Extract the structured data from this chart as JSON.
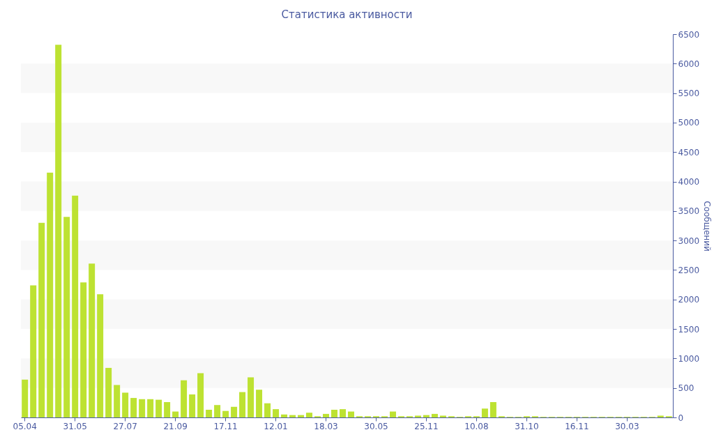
{
  "chart_data": {
    "type": "bar",
    "title": "Статистика активности",
    "y2label": "Сообщений",
    "categories": [
      "05.04",
      null,
      null,
      null,
      null,
      null,
      "31.05",
      null,
      null,
      null,
      null,
      null,
      "27.07",
      null,
      null,
      null,
      null,
      null,
      "21.09",
      null,
      null,
      null,
      null,
      null,
      "17.11",
      null,
      null,
      null,
      null,
      null,
      "12.01",
      null,
      null,
      null,
      null,
      null,
      "18.03",
      null,
      null,
      null,
      null,
      null,
      "30.05",
      null,
      null,
      null,
      null,
      null,
      "25.11",
      null,
      null,
      null,
      null,
      null,
      "10.08",
      null,
      null,
      null,
      null,
      null,
      "31.10",
      null,
      null,
      null,
      null,
      null,
      "16.11",
      null,
      null,
      null,
      null,
      null,
      "30.03",
      null,
      null,
      null,
      null,
      null
    ],
    "series": [
      {
        "color": "#bde232",
        "axis": "y2",
        "values": [
          640,
          2240,
          3300,
          4150,
          6320,
          3400,
          3760,
          2290,
          2610,
          2090,
          840,
          550,
          420,
          330,
          310,
          310,
          300,
          260,
          100,
          630,
          390,
          750,
          130,
          210,
          110,
          180,
          430,
          680,
          470,
          240,
          140,
          50,
          40,
          40,
          80,
          20,
          60,
          130,
          140,
          100,
          20,
          20,
          20,
          20,
          100,
          20,
          20,
          30,
          40,
          60,
          30,
          20,
          10,
          20,
          20,
          150,
          260,
          20,
          10,
          10,
          20,
          20,
          10,
          10,
          10,
          10,
          10,
          10,
          10,
          10,
          10,
          10,
          10,
          10,
          10,
          10,
          30,
          20
        ]
      }
    ],
    "bands": [
      {
        "axis": "y2",
        "from": 500,
        "to": 1000,
        "color": "#f8f8f8"
      },
      {
        "axis": "y2",
        "from": 1500,
        "to": 2000,
        "color": "#f8f8f8"
      },
      {
        "axis": "y2",
        "from": 2500,
        "to": 3000,
        "color": "#f8f8f8"
      },
      {
        "axis": "y2",
        "from": 3500,
        "to": 4000,
        "color": "#f8f8f8"
      },
      {
        "axis": "y2",
        "from": 4500,
        "to": 5000,
        "color": "#f8f8f8"
      },
      {
        "axis": "y2",
        "from": 5500,
        "to": 6000,
        "color": "#f8f8f8"
      }
    ],
    "y2lim": [
      0,
      6500
    ],
    "y2ticks": [
      0,
      500,
      1000,
      1500,
      2000,
      2500,
      3000,
      3500,
      4000,
      4500,
      5000,
      5500,
      6000,
      6500
    ],
    "grid": false
  }
}
